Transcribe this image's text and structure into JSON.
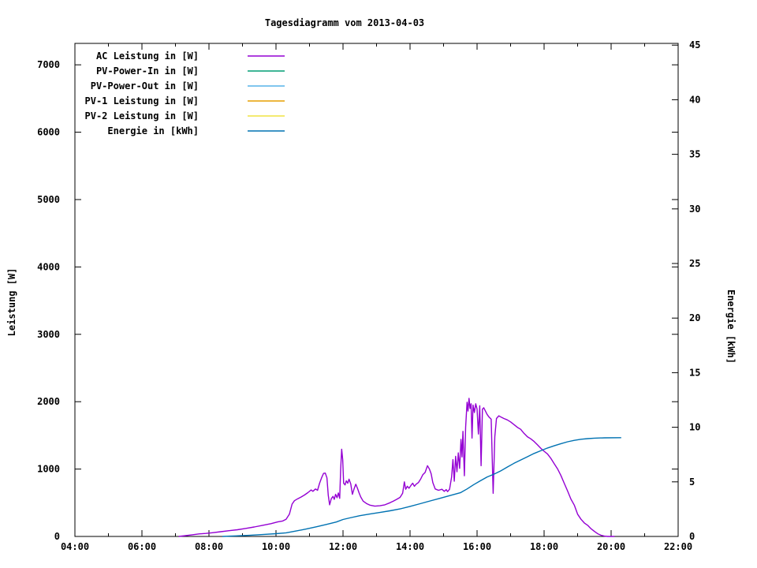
{
  "title": "Tagesdiagramm vom 2013-04-03",
  "chart_data": {
    "type": "line",
    "title": "Tagesdiagramm vom 2013-04-03",
    "grid": false,
    "legend_position": "top-left-inside",
    "x_axis": {
      "label": "",
      "unit": "time",
      "range_hours": [
        4,
        22
      ],
      "major_ticks": [
        {
          "h": 4,
          "label": "04:00"
        },
        {
          "h": 6,
          "label": "06:00"
        },
        {
          "h": 8,
          "label": "08:00"
        },
        {
          "h": 10,
          "label": "10:00"
        },
        {
          "h": 12,
          "label": "12:00"
        },
        {
          "h": 14,
          "label": "14:00"
        },
        {
          "h": 16,
          "label": "16:00"
        },
        {
          "h": 18,
          "label": "18:00"
        },
        {
          "h": 20,
          "label": "20:00"
        },
        {
          "h": 22,
          "label": "22:00"
        }
      ],
      "minor_hours": [
        5,
        7,
        9,
        11,
        13,
        15,
        17,
        19,
        21
      ]
    },
    "y_axis_left": {
      "label": "Leistung [W]",
      "range": [
        0,
        7318
      ],
      "ticks": [
        {
          "v": 0,
          "label": "0"
        },
        {
          "v": 1000,
          "label": "1000"
        },
        {
          "v": 2000,
          "label": "2000"
        },
        {
          "v": 3000,
          "label": "3000"
        },
        {
          "v": 4000,
          "label": "4000"
        },
        {
          "v": 5000,
          "label": "5000"
        },
        {
          "v": 6000,
          "label": "6000"
        },
        {
          "v": 7000,
          "label": "7000"
        }
      ]
    },
    "y_axis_right": {
      "label": "Energie [kWh]",
      "range": [
        0,
        45.16
      ],
      "ticks": [
        {
          "v": 0,
          "label": "0"
        },
        {
          "v": 5,
          "label": "5"
        },
        {
          "v": 10,
          "label": "10"
        },
        {
          "v": 15,
          "label": "15"
        },
        {
          "v": 20,
          "label": "20"
        },
        {
          "v": 25,
          "label": "25"
        },
        {
          "v": 30,
          "label": "30"
        },
        {
          "v": 35,
          "label": "35"
        },
        {
          "v": 40,
          "label": "40"
        },
        {
          "v": 45,
          "label": "45"
        }
      ]
    },
    "series": [
      {
        "name": "AC Leistung in [W]",
        "color": "#9400d3",
        "axis": "left",
        "points": [
          [
            7.1,
            0
          ],
          [
            7.3,
            12
          ],
          [
            7.5,
            25
          ],
          [
            7.7,
            38
          ],
          [
            7.9,
            45
          ],
          [
            8.1,
            55
          ],
          [
            8.35,
            70
          ],
          [
            8.6,
            85
          ],
          [
            8.85,
            100
          ],
          [
            9.1,
            120
          ],
          [
            9.35,
            140
          ],
          [
            9.6,
            165
          ],
          [
            9.85,
            190
          ],
          [
            10.05,
            215
          ],
          [
            10.2,
            230
          ],
          [
            10.3,
            255
          ],
          [
            10.4,
            330
          ],
          [
            10.48,
            480
          ],
          [
            10.55,
            530
          ],
          [
            10.65,
            560
          ],
          [
            10.75,
            585
          ],
          [
            10.85,
            615
          ],
          [
            10.95,
            650
          ],
          [
            11.05,
            690
          ],
          [
            11.1,
            670
          ],
          [
            11.18,
            705
          ],
          [
            11.24,
            685
          ],
          [
            11.3,
            790
          ],
          [
            11.36,
            870
          ],
          [
            11.42,
            935
          ],
          [
            11.47,
            940
          ],
          [
            11.52,
            870
          ],
          [
            11.56,
            610
          ],
          [
            11.6,
            470
          ],
          [
            11.65,
            560
          ],
          [
            11.7,
            595
          ],
          [
            11.74,
            550
          ],
          [
            11.78,
            625
          ],
          [
            11.82,
            575
          ],
          [
            11.86,
            645
          ],
          [
            11.9,
            565
          ],
          [
            11.93,
            990
          ],
          [
            11.96,
            1294
          ],
          [
            11.99,
            1140
          ],
          [
            12.02,
            790
          ],
          [
            12.06,
            765
          ],
          [
            12.1,
            825
          ],
          [
            12.14,
            790
          ],
          [
            12.18,
            850
          ],
          [
            12.23,
            780
          ],
          [
            12.28,
            625
          ],
          [
            12.33,
            705
          ],
          [
            12.38,
            775
          ],
          [
            12.43,
            715
          ],
          [
            12.48,
            645
          ],
          [
            12.53,
            585
          ],
          [
            12.6,
            525
          ],
          [
            12.7,
            490
          ],
          [
            12.8,
            465
          ],
          [
            12.95,
            450
          ],
          [
            13.1,
            455
          ],
          [
            13.25,
            470
          ],
          [
            13.4,
            500
          ],
          [
            13.5,
            525
          ],
          [
            13.6,
            550
          ],
          [
            13.7,
            580
          ],
          [
            13.78,
            640
          ],
          [
            13.83,
            810
          ],
          [
            13.87,
            700
          ],
          [
            13.92,
            745
          ],
          [
            13.97,
            715
          ],
          [
            14.03,
            760
          ],
          [
            14.08,
            790
          ],
          [
            14.13,
            745
          ],
          [
            14.18,
            775
          ],
          [
            14.25,
            800
          ],
          [
            14.32,
            855
          ],
          [
            14.38,
            915
          ],
          [
            14.45,
            950
          ],
          [
            14.52,
            1050
          ],
          [
            14.58,
            1000
          ],
          [
            14.63,
            930
          ],
          [
            14.68,
            800
          ],
          [
            14.75,
            705
          ],
          [
            14.85,
            685
          ],
          [
            14.95,
            700
          ],
          [
            15.02,
            670
          ],
          [
            15.08,
            695
          ],
          [
            15.12,
            665
          ],
          [
            15.18,
            700
          ],
          [
            15.24,
            880
          ],
          [
            15.28,
            1140
          ],
          [
            15.32,
            820
          ],
          [
            15.36,
            1190
          ],
          [
            15.4,
            960
          ],
          [
            15.44,
            1240
          ],
          [
            15.48,
            1010
          ],
          [
            15.52,
            1440
          ],
          [
            15.55,
            1180
          ],
          [
            15.58,
            1560
          ],
          [
            15.62,
            900
          ],
          [
            15.66,
            1620
          ],
          [
            15.7,
            1990
          ],
          [
            15.73,
            1860
          ],
          [
            15.76,
            2050
          ],
          [
            15.79,
            1900
          ],
          [
            15.82,
            1970
          ],
          [
            15.85,
            1460
          ],
          [
            15.88,
            1950
          ],
          [
            15.92,
            1840
          ],
          [
            15.96,
            1970
          ],
          [
            16.0,
            1890
          ],
          [
            16.04,
            1520
          ],
          [
            16.08,
            1940
          ],
          [
            16.12,
            1050
          ],
          [
            16.16,
            1890
          ],
          [
            16.2,
            1910
          ],
          [
            16.25,
            1860
          ],
          [
            16.3,
            1810
          ],
          [
            16.36,
            1770
          ],
          [
            16.42,
            1740
          ],
          [
            16.48,
            640
          ],
          [
            16.53,
            1480
          ],
          [
            16.58,
            1750
          ],
          [
            16.65,
            1790
          ],
          [
            16.72,
            1770
          ],
          [
            16.8,
            1750
          ],
          [
            16.9,
            1730
          ],
          [
            17.0,
            1700
          ],
          [
            17.1,
            1660
          ],
          [
            17.2,
            1620
          ],
          [
            17.3,
            1590
          ],
          [
            17.4,
            1530
          ],
          [
            17.5,
            1480
          ],
          [
            17.6,
            1450
          ],
          [
            17.7,
            1410
          ],
          [
            17.8,
            1360
          ],
          [
            17.9,
            1310
          ],
          [
            18.0,
            1265
          ],
          [
            18.1,
            1225
          ],
          [
            18.2,
            1160
          ],
          [
            18.3,
            1080
          ],
          [
            18.4,
            1005
          ],
          [
            18.5,
            905
          ],
          [
            18.6,
            790
          ],
          [
            18.7,
            675
          ],
          [
            18.8,
            555
          ],
          [
            18.9,
            465
          ],
          [
            19.0,
            330
          ],
          [
            19.1,
            255
          ],
          [
            19.2,
            200
          ],
          [
            19.3,
            165
          ],
          [
            19.4,
            115
          ],
          [
            19.5,
            75
          ],
          [
            19.6,
            40
          ],
          [
            19.7,
            18
          ],
          [
            19.8,
            5
          ],
          [
            19.9,
            0
          ],
          [
            20.1,
            0
          ]
        ]
      },
      {
        "name": "PV-Power-In in [W]",
        "color": "#009e73",
        "axis": "left",
        "points": []
      },
      {
        "name": "PV-Power-Out in [W]",
        "color": "#56b4e9",
        "axis": "left",
        "points": []
      },
      {
        "name": "PV-1 Leistung in [W]",
        "color": "#e69f00",
        "axis": "left",
        "points": []
      },
      {
        "name": "PV-2 Leistung in [W]",
        "color": "#f0e442",
        "axis": "left",
        "points": []
      },
      {
        "name": "Energie in [kWh]",
        "color": "#0072b2",
        "axis": "right",
        "points": [
          [
            8.4,
            0
          ],
          [
            8.8,
            0.05
          ],
          [
            9.2,
            0.1
          ],
          [
            9.6,
            0.17
          ],
          [
            10.0,
            0.25
          ],
          [
            10.3,
            0.33
          ],
          [
            10.6,
            0.5
          ],
          [
            10.9,
            0.68
          ],
          [
            11.2,
            0.88
          ],
          [
            11.5,
            1.1
          ],
          [
            11.8,
            1.32
          ],
          [
            12.0,
            1.55
          ],
          [
            12.2,
            1.7
          ],
          [
            12.5,
            1.9
          ],
          [
            12.8,
            2.05
          ],
          [
            13.1,
            2.2
          ],
          [
            13.4,
            2.35
          ],
          [
            13.7,
            2.52
          ],
          [
            14.0,
            2.75
          ],
          [
            14.3,
            3.0
          ],
          [
            14.6,
            3.25
          ],
          [
            14.9,
            3.5
          ],
          [
            15.2,
            3.75
          ],
          [
            15.5,
            4.0
          ],
          [
            15.7,
            4.35
          ],
          [
            15.9,
            4.75
          ],
          [
            16.1,
            5.1
          ],
          [
            16.3,
            5.45
          ],
          [
            16.5,
            5.7
          ],
          [
            16.7,
            6.0
          ],
          [
            16.9,
            6.35
          ],
          [
            17.1,
            6.7
          ],
          [
            17.3,
            7.0
          ],
          [
            17.5,
            7.3
          ],
          [
            17.7,
            7.6
          ],
          [
            17.9,
            7.85
          ],
          [
            18.1,
            8.1
          ],
          [
            18.3,
            8.3
          ],
          [
            18.5,
            8.5
          ],
          [
            18.7,
            8.67
          ],
          [
            18.9,
            8.8
          ],
          [
            19.1,
            8.9
          ],
          [
            19.3,
            8.96
          ],
          [
            19.5,
            9.0
          ],
          [
            19.8,
            9.03
          ],
          [
            20.3,
            9.05
          ]
        ]
      }
    ]
  }
}
